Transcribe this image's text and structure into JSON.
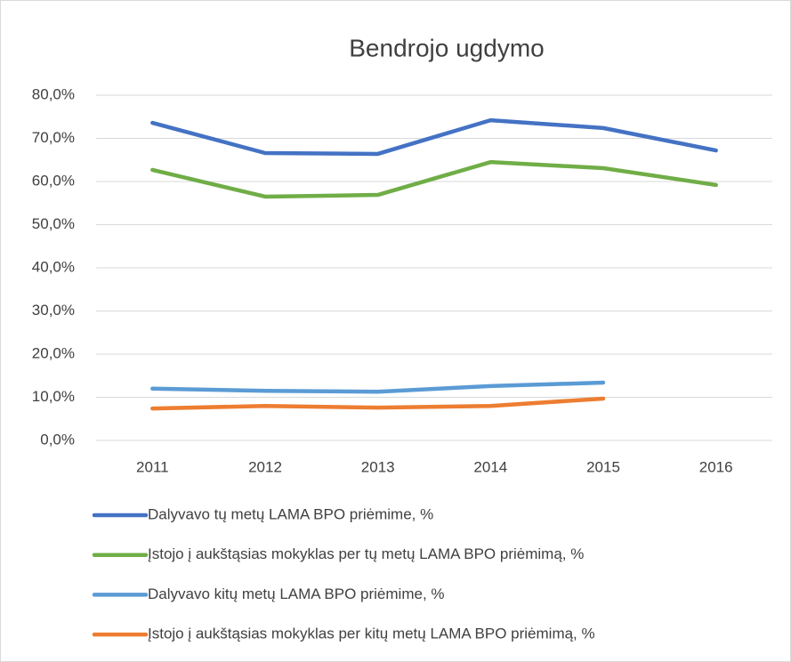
{
  "chart_data": {
    "type": "line",
    "title": "Bendrojo ugdymo",
    "categories": [
      "2011",
      "2012",
      "2013",
      "2014",
      "2015",
      "2016"
    ],
    "series": [
      {
        "name": "Dalyvavo tų metų LAMA BPO priėmime, %",
        "color": "#4472c4",
        "values": [
          73.6,
          66.6,
          66.4,
          74.2,
          72.4,
          67.2
        ]
      },
      {
        "name": "Įstojo į aukštąsias mokyklas per tų metų LAMA BPO priėmimą, %",
        "color": "#70ad47",
        "values": [
          62.7,
          56.5,
          56.9,
          64.5,
          63.1,
          59.2
        ]
      },
      {
        "name": "Dalyvavo kitų metų LAMA BPO priėmime, %",
        "color": "#5b9bd5",
        "values": [
          12.0,
          11.5,
          11.3,
          12.6,
          13.4,
          null
        ]
      },
      {
        "name": "Įstojo į aukštąsias mokyklas per kitų metų LAMA BPO priėmimą, %",
        "color": "#ed7d31",
        "values": [
          7.4,
          8.0,
          7.6,
          8.0,
          9.7,
          null
        ]
      }
    ],
    "ylim": [
      0,
      80
    ],
    "yticks": [
      {
        "value": 0,
        "label": "0,0%"
      },
      {
        "value": 10,
        "label": "10,0%"
      },
      {
        "value": 20,
        "label": "20,0%"
      },
      {
        "value": 30,
        "label": "30,0%"
      },
      {
        "value": 40,
        "label": "40,0%"
      },
      {
        "value": 50,
        "label": "50,0%"
      },
      {
        "value": 60,
        "label": "60,0%"
      },
      {
        "value": 70,
        "label": "70,0%"
      },
      {
        "value": 80,
        "label": "80,0%"
      }
    ],
    "grid": true,
    "legend": "bottom"
  }
}
